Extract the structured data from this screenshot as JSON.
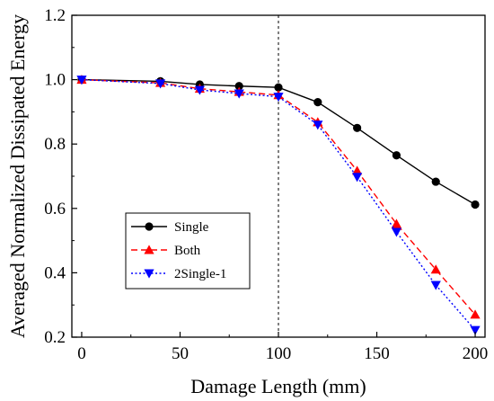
{
  "chart_data": {
    "type": "line",
    "title": "",
    "xlabel": "Damage Length (mm)",
    "ylabel": "Averaged Normalized Dissipated Energy",
    "xlim": [
      -5,
      205
    ],
    "ylim": [
      0.2,
      1.2
    ],
    "xticks": [
      0,
      50,
      100,
      150,
      200
    ],
    "xtick_labels": [
      "0",
      "50",
      "100",
      "150",
      "200"
    ],
    "yticks": [
      0.2,
      0.4,
      0.6,
      0.8,
      1.0,
      1.2
    ],
    "ytick_labels": [
      "0.2",
      "0.4",
      "0.6",
      "0.8",
      "1.0",
      "1.2"
    ],
    "grid": false,
    "legend_position": "lower-left",
    "reference_line": {
      "x": 100,
      "style": "dashed",
      "color": "#000000"
    },
    "series": [
      {
        "name": "Single",
        "color": "#000000",
        "line_style": "solid",
        "marker": "circle",
        "x": [
          0,
          40,
          60,
          80,
          100,
          120,
          140,
          160,
          180,
          200
        ],
        "values": [
          1.0,
          0.995,
          0.985,
          0.98,
          0.976,
          0.93,
          0.85,
          0.765,
          0.683,
          0.612
        ]
      },
      {
        "name": "Both",
        "color": "#ff0000",
        "line_style": "dashed",
        "marker": "triangle-up",
        "x": [
          0,
          40,
          60,
          80,
          100,
          120,
          140,
          160,
          180,
          200
        ],
        "values": [
          1.0,
          0.99,
          0.972,
          0.962,
          0.952,
          0.868,
          0.717,
          0.552,
          0.41,
          0.27
        ]
      },
      {
        "name": "2Single-1",
        "color": "#0000ff",
        "line_style": "dotted",
        "marker": "triangle-down",
        "x": [
          0,
          40,
          60,
          80,
          100,
          120,
          140,
          160,
          180,
          200
        ],
        "values": [
          1.0,
          0.988,
          0.968,
          0.957,
          0.947,
          0.86,
          0.698,
          0.527,
          0.362,
          0.222
        ]
      }
    ]
  }
}
